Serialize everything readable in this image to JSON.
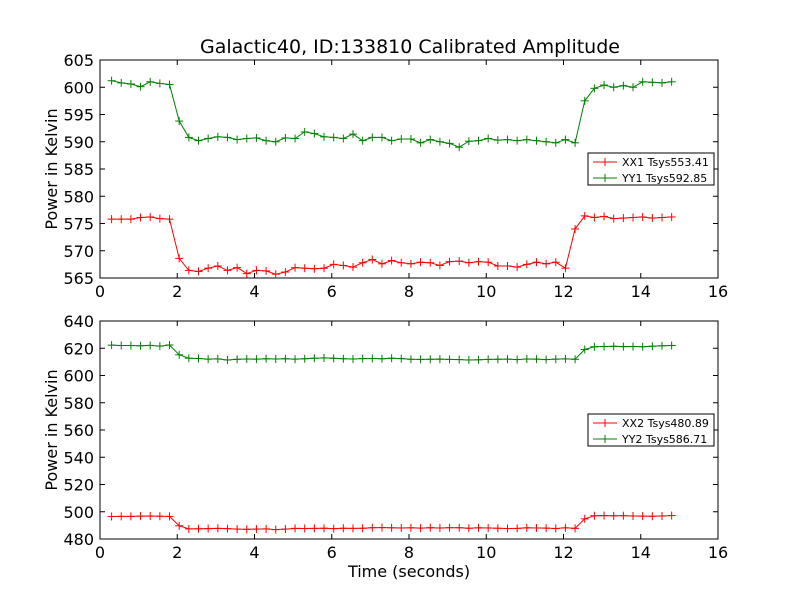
{
  "figure": {
    "title": "Galactic40, ID:133810 Calibrated Amplitude"
  },
  "chart_data": [
    {
      "type": "line",
      "title": "Galactic40, ID:133810 Calibrated Amplitude",
      "xlabel": "",
      "ylabel": "Power in Kelvin",
      "xlim": [
        0,
        16
      ],
      "ylim": [
        565,
        605
      ],
      "x_ticks": [
        0,
        2,
        4,
        6,
        8,
        10,
        12,
        14,
        16
      ],
      "y_ticks": [
        565,
        570,
        575,
        580,
        585,
        590,
        595,
        600,
        605
      ],
      "grid": false,
      "legend_position": "center-right",
      "x": [
        0.3,
        0.55,
        0.8,
        1.05,
        1.3,
        1.55,
        1.8,
        2.05,
        2.3,
        2.55,
        2.8,
        3.05,
        3.3,
        3.55,
        3.8,
        4.05,
        4.3,
        4.55,
        4.8,
        5.05,
        5.3,
        5.55,
        5.8,
        6.05,
        6.3,
        6.55,
        6.8,
        7.05,
        7.3,
        7.55,
        7.8,
        8.05,
        8.3,
        8.55,
        8.8,
        9.05,
        9.3,
        9.55,
        9.8,
        10.05,
        10.3,
        10.55,
        10.8,
        11.05,
        11.3,
        11.55,
        11.8,
        12.05,
        12.3,
        12.55,
        12.8,
        13.05,
        13.3,
        13.55,
        13.8,
        14.05,
        14.3,
        14.55,
        14.8
      ],
      "series": [
        {
          "name": "XX1 Tsys553.41",
          "color": "#ff0000",
          "values": [
            575.8,
            575.8,
            575.8,
            576.1,
            576.2,
            575.9,
            575.8,
            568.6,
            566.4,
            566.2,
            566.8,
            567.2,
            566.4,
            566.9,
            565.8,
            566.4,
            566.3,
            565.7,
            566.1,
            566.9,
            566.8,
            566.7,
            566.8,
            567.5,
            567.3,
            567.0,
            567.8,
            568.4,
            567.6,
            568.2,
            567.8,
            567.6,
            567.9,
            567.8,
            567.3,
            568.0,
            568.1,
            567.8,
            568.0,
            567.9,
            567.2,
            567.2,
            567.0,
            567.5,
            567.9,
            567.6,
            567.9,
            566.8,
            574.0,
            576.4,
            576.1,
            576.3,
            575.9,
            576.0,
            576.1,
            576.2,
            576.0,
            576.1,
            576.2
          ]
        },
        {
          "name": "YY1 Tsys592.85",
          "color": "#008000",
          "values": [
            601.2,
            600.8,
            600.6,
            600.1,
            601.0,
            600.7,
            600.5,
            593.8,
            590.8,
            590.2,
            590.6,
            590.9,
            590.8,
            590.4,
            590.6,
            590.7,
            590.2,
            590.0,
            590.7,
            590.6,
            591.8,
            591.5,
            590.9,
            590.8,
            590.6,
            591.4,
            590.2,
            590.8,
            590.8,
            590.2,
            590.5,
            590.5,
            589.8,
            590.4,
            590.0,
            589.7,
            589.0,
            590.1,
            590.2,
            590.6,
            590.3,
            590.4,
            590.2,
            590.4,
            590.2,
            590.0,
            589.8,
            590.4,
            589.8,
            597.5,
            599.8,
            600.4,
            600.0,
            600.3,
            600.0,
            601.0,
            600.9,
            600.8,
            601.0
          ]
        }
      ]
    },
    {
      "type": "line",
      "title": "",
      "xlabel": "Time (seconds)",
      "ylabel": "Power in Kelvin",
      "xlim": [
        0,
        16
      ],
      "ylim": [
        480,
        640
      ],
      "x_ticks": [
        0,
        2,
        4,
        6,
        8,
        10,
        12,
        14,
        16
      ],
      "y_ticks": [
        480,
        500,
        520,
        540,
        560,
        580,
        600,
        620,
        640
      ],
      "grid": false,
      "legend_position": "center-right",
      "x": [
        0.3,
        0.55,
        0.8,
        1.05,
        1.3,
        1.55,
        1.8,
        2.05,
        2.3,
        2.55,
        2.8,
        3.05,
        3.3,
        3.55,
        3.8,
        4.05,
        4.3,
        4.55,
        4.8,
        5.05,
        5.3,
        5.55,
        5.8,
        6.05,
        6.3,
        6.55,
        6.8,
        7.05,
        7.3,
        7.55,
        7.8,
        8.05,
        8.3,
        8.55,
        8.8,
        9.05,
        9.3,
        9.55,
        9.8,
        10.05,
        10.3,
        10.55,
        10.8,
        11.05,
        11.3,
        11.55,
        11.8,
        12.05,
        12.3,
        12.55,
        12.8,
        13.05,
        13.3,
        13.55,
        13.8,
        14.05,
        14.3,
        14.55,
        14.8
      ],
      "series": [
        {
          "name": "XX2 Tsys480.89",
          "color": "#ff0000",
          "values": [
            496.5,
            496.6,
            496.6,
            496.8,
            496.9,
            496.7,
            496.6,
            489.7,
            487.4,
            487.5,
            487.6,
            487.8,
            487.6,
            487.3,
            487.1,
            487.3,
            487.4,
            486.9,
            487.3,
            487.8,
            487.7,
            487.8,
            487.9,
            487.6,
            487.9,
            487.8,
            487.9,
            488.3,
            488.4,
            488.2,
            488.1,
            488.2,
            488.0,
            488.3,
            488.1,
            488.3,
            488.3,
            487.9,
            488.2,
            488.1,
            487.9,
            487.7,
            487.8,
            488.2,
            488.1,
            488.0,
            487.7,
            488.2,
            487.8,
            494.8,
            497.1,
            497.2,
            497.0,
            497.1,
            496.9,
            496.8,
            496.7,
            496.9,
            497.2
          ]
        },
        {
          "name": "YY2 Tsys586.71",
          "color": "#008000",
          "values": [
            622.3,
            622.0,
            622.0,
            621.8,
            622.1,
            621.6,
            622.4,
            615.2,
            612.7,
            612.5,
            612.0,
            612.2,
            611.4,
            611.9,
            612.1,
            612.0,
            612.3,
            612.1,
            612.3,
            612.0,
            612.3,
            612.7,
            612.9,
            612.6,
            612.3,
            612.1,
            612.4,
            612.5,
            612.3,
            612.7,
            612.4,
            611.9,
            611.8,
            611.9,
            612.0,
            611.8,
            611.7,
            611.4,
            611.5,
            611.8,
            611.9,
            612.0,
            611.7,
            612.1,
            612.0,
            611.7,
            612.0,
            612.2,
            611.9,
            619.1,
            621.1,
            621.3,
            621.4,
            621.2,
            621.3,
            621.1,
            621.5,
            621.8,
            622.0
          ]
        }
      ]
    }
  ]
}
